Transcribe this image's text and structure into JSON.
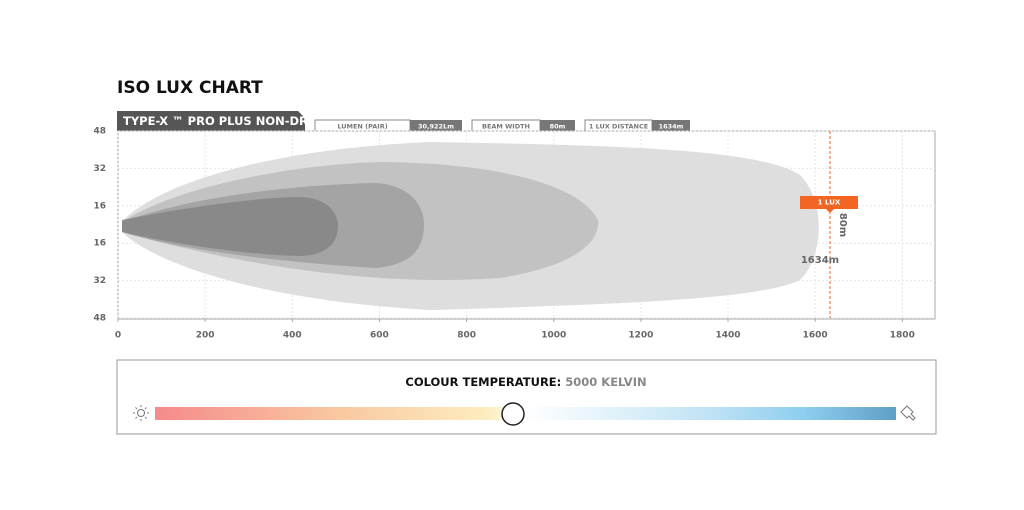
{
  "title": "ISO LUX CHART",
  "product": "TYPE-X ™ PRO PLUS NON-DRL",
  "specs": [
    {
      "label": "LUMEN (PAIR)",
      "value": "30,922Lm"
    },
    {
      "label": "BEAM WIDTH",
      "value": "80m"
    },
    {
      "label": "1 LUX DISTANCE",
      "value": "1634m"
    }
  ],
  "chart_data": {
    "type": "isolux",
    "xlim": [
      0,
      1875
    ],
    "xticks": [
      0,
      200,
      400,
      600,
      800,
      1000,
      1200,
      1400,
      1600,
      1800
    ],
    "y_categories": [
      "48",
      "32",
      "16",
      "16",
      "32",
      "48"
    ],
    "marker": {
      "x": 1634,
      "label": "1 LUX",
      "distance_label": "1634m",
      "width_label": "80m"
    },
    "grid": true
  },
  "colour_temperature": {
    "label": "COLOUR TEMPERATURE:",
    "value": "5000 KELVIN"
  }
}
